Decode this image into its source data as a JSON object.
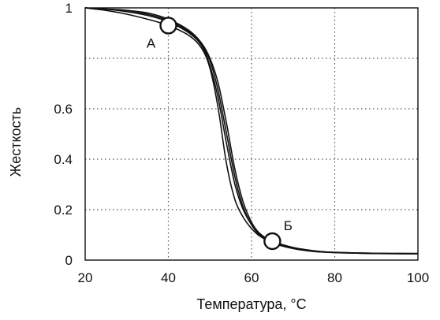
{
  "chart_data": {
    "type": "line",
    "title": "",
    "xlabel": "Температура, °C",
    "ylabel": "Жесткость",
    "xlim": [
      20,
      100
    ],
    "ylim": [
      0,
      1
    ],
    "x_ticks": [
      20,
      40,
      60,
      80,
      100
    ],
    "x_tick_labels": [
      "20",
      "40",
      "60",
      "80",
      "100"
    ],
    "y_ticks": [
      0,
      0.2,
      0.4,
      0.6,
      1
    ],
    "y_tick_labels": [
      "0",
      "0.2",
      "0.4",
      "0.6",
      "1"
    ],
    "y_gridlines": [
      0.2,
      0.4,
      0.6,
      0.8
    ],
    "x_gridlines": [
      40,
      60,
      80
    ],
    "grid": true,
    "legend": "none",
    "series": [
      {
        "x": [
          20,
          25,
          30,
          35,
          40,
          45,
          48,
          50,
          52,
          54,
          56,
          58,
          60,
          62,
          65,
          70,
          75,
          80,
          90,
          100
        ],
        "values": [
          1,
          0.99,
          0.975,
          0.955,
          0.93,
          0.89,
          0.84,
          0.76,
          0.6,
          0.38,
          0.24,
          0.17,
          0.125,
          0.095,
          0.07,
          0.05,
          0.037,
          0.03,
          0.026,
          0.025
        ]
      },
      {
        "x": [
          20,
          25,
          30,
          35,
          40,
          45,
          48,
          50,
          52,
          54,
          56,
          58,
          60,
          62,
          65,
          70,
          75,
          80,
          90,
          100
        ],
        "values": [
          1,
          0.995,
          0.985,
          0.97,
          0.945,
          0.9,
          0.85,
          0.77,
          0.64,
          0.46,
          0.3,
          0.2,
          0.14,
          0.1,
          0.072,
          0.048,
          0.035,
          0.03,
          0.027,
          0.026
        ]
      },
      {
        "x": [
          20,
          25,
          30,
          35,
          40,
          45,
          48,
          50,
          52,
          54,
          56,
          58,
          60,
          62,
          65,
          70,
          75,
          80,
          90,
          100
        ],
        "values": [
          1,
          0.995,
          0.99,
          0.98,
          0.955,
          0.91,
          0.86,
          0.8,
          0.7,
          0.54,
          0.36,
          0.23,
          0.15,
          0.105,
          0.075,
          0.05,
          0.036,
          0.031,
          0.027,
          0.026
        ]
      },
      {
        "x": [
          20,
          25,
          30,
          35,
          40,
          45,
          48,
          50,
          52,
          54,
          56,
          58,
          60,
          62,
          65,
          70,
          75,
          80,
          90,
          100
        ],
        "values": [
          1,
          0.995,
          0.99,
          0.975,
          0.95,
          0.905,
          0.855,
          0.79,
          0.67,
          0.5,
          0.33,
          0.21,
          0.14,
          0.098,
          0.068,
          0.046,
          0.034,
          0.03,
          0.026,
          0.025
        ]
      }
    ],
    "annotations": [
      {
        "label": "А",
        "x": 40,
        "y": 0.93
      },
      {
        "label": "Б",
        "x": 65,
        "y": 0.075
      }
    ]
  }
}
